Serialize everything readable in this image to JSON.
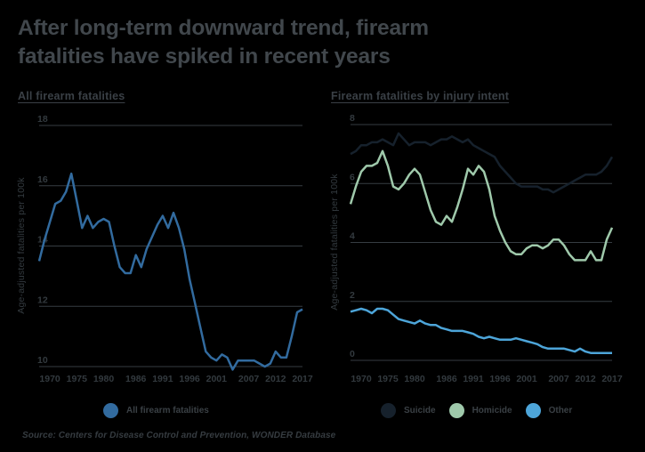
{
  "title": "After long-term downward trend, firearm fatalities have spiked in recent years",
  "source": "Source: Centers for Disease Control and Prevention, WONDER Database",
  "colors": {
    "background": "#000000",
    "title_text": "#41474c",
    "heading_text": "#3a4046",
    "tick_text": "#333a3f",
    "gridline": "#363d42",
    "all_firearm_line": "#326b9f",
    "suicide_line": "#16212c",
    "homicide_line": "#9fc9ab",
    "other_line": "#4da5d9"
  },
  "chart_data": [
    {
      "type": "line",
      "title": "All firearm fatalities",
      "ylabel": "Age-adjusted fatalities per 100k",
      "x_range": [
        1968,
        2017
      ],
      "xticks": [
        1970,
        1975,
        1980,
        1986,
        1991,
        1996,
        2001,
        2007,
        2012,
        2017
      ],
      "yticks": [
        10,
        12,
        14,
        16,
        18
      ],
      "ylim": [
        10,
        18
      ],
      "grid": true,
      "legend_position": "bottom",
      "series": [
        {
          "name": "All firearm fatalities",
          "color": "#326b9f",
          "values": [
            13.5,
            14.2,
            14.8,
            15.4,
            15.5,
            15.8,
            16.4,
            15.5,
            14.6,
            15.0,
            14.6,
            14.8,
            14.9,
            14.8,
            14.0,
            13.3,
            13.1,
            13.1,
            13.7,
            13.3,
            13.9,
            14.3,
            14.7,
            15.0,
            14.6,
            15.1,
            14.6,
            13.9,
            12.9,
            12.1,
            11.3,
            10.5,
            10.3,
            10.2,
            10.4,
            10.3,
            9.9,
            10.2,
            10.2,
            10.2,
            10.2,
            10.1,
            10.0,
            10.1,
            10.5,
            10.3,
            10.3,
            11.0,
            11.8,
            11.9
          ]
        }
      ]
    },
    {
      "type": "line",
      "title": "Firearm fatalities by injury intent",
      "ylabel": "Age-adjusted fatalities per 100k",
      "x_range": [
        1968,
        2017
      ],
      "xticks": [
        1970,
        1975,
        1980,
        1986,
        1991,
        1996,
        2001,
        2007,
        2012,
        2017
      ],
      "yticks": [
        0,
        2,
        4,
        6,
        8
      ],
      "ylim": [
        0,
        8
      ],
      "grid": true,
      "legend_position": "bottom",
      "series": [
        {
          "name": "Suicide",
          "color": "#16212c",
          "values": [
            7.0,
            7.1,
            7.3,
            7.3,
            7.4,
            7.4,
            7.5,
            7.4,
            7.3,
            7.7,
            7.5,
            7.3,
            7.4,
            7.4,
            7.4,
            7.3,
            7.4,
            7.5,
            7.5,
            7.6,
            7.5,
            7.4,
            7.5,
            7.3,
            7.2,
            7.1,
            7.0,
            6.9,
            6.6,
            6.4,
            6.2,
            6.0,
            5.9,
            5.9,
            5.9,
            5.9,
            5.8,
            5.8,
            5.7,
            5.8,
            5.9,
            6.0,
            6.1,
            6.2,
            6.3,
            6.3,
            6.3,
            6.4,
            6.6,
            6.9
          ]
        },
        {
          "name": "Homicide",
          "color": "#9fc9ab",
          "values": [
            5.3,
            5.9,
            6.4,
            6.6,
            6.6,
            6.7,
            7.1,
            6.6,
            5.9,
            5.8,
            6.0,
            6.3,
            6.5,
            6.3,
            5.7,
            5.1,
            4.7,
            4.6,
            4.9,
            4.7,
            5.2,
            5.8,
            6.5,
            6.3,
            6.6,
            6.4,
            5.8,
            4.9,
            4.4,
            4.0,
            3.7,
            3.6,
            3.6,
            3.8,
            3.9,
            3.9,
            3.8,
            3.9,
            4.1,
            4.1,
            3.9,
            3.6,
            3.4,
            3.4,
            3.4,
            3.7,
            3.4,
            3.4,
            4.1,
            4.5
          ]
        },
        {
          "name": "Other",
          "color": "#4da5d9",
          "values": [
            1.65,
            1.7,
            1.75,
            1.7,
            1.6,
            1.75,
            1.75,
            1.7,
            1.55,
            1.4,
            1.35,
            1.3,
            1.25,
            1.35,
            1.25,
            1.2,
            1.2,
            1.1,
            1.05,
            1.0,
            1.0,
            1.0,
            0.95,
            0.9,
            0.8,
            0.75,
            0.8,
            0.75,
            0.7,
            0.7,
            0.7,
            0.75,
            0.7,
            0.65,
            0.6,
            0.55,
            0.45,
            0.4,
            0.4,
            0.4,
            0.4,
            0.35,
            0.3,
            0.4,
            0.3,
            0.25,
            0.25,
            0.25,
            0.25,
            0.25
          ]
        }
      ]
    }
  ]
}
